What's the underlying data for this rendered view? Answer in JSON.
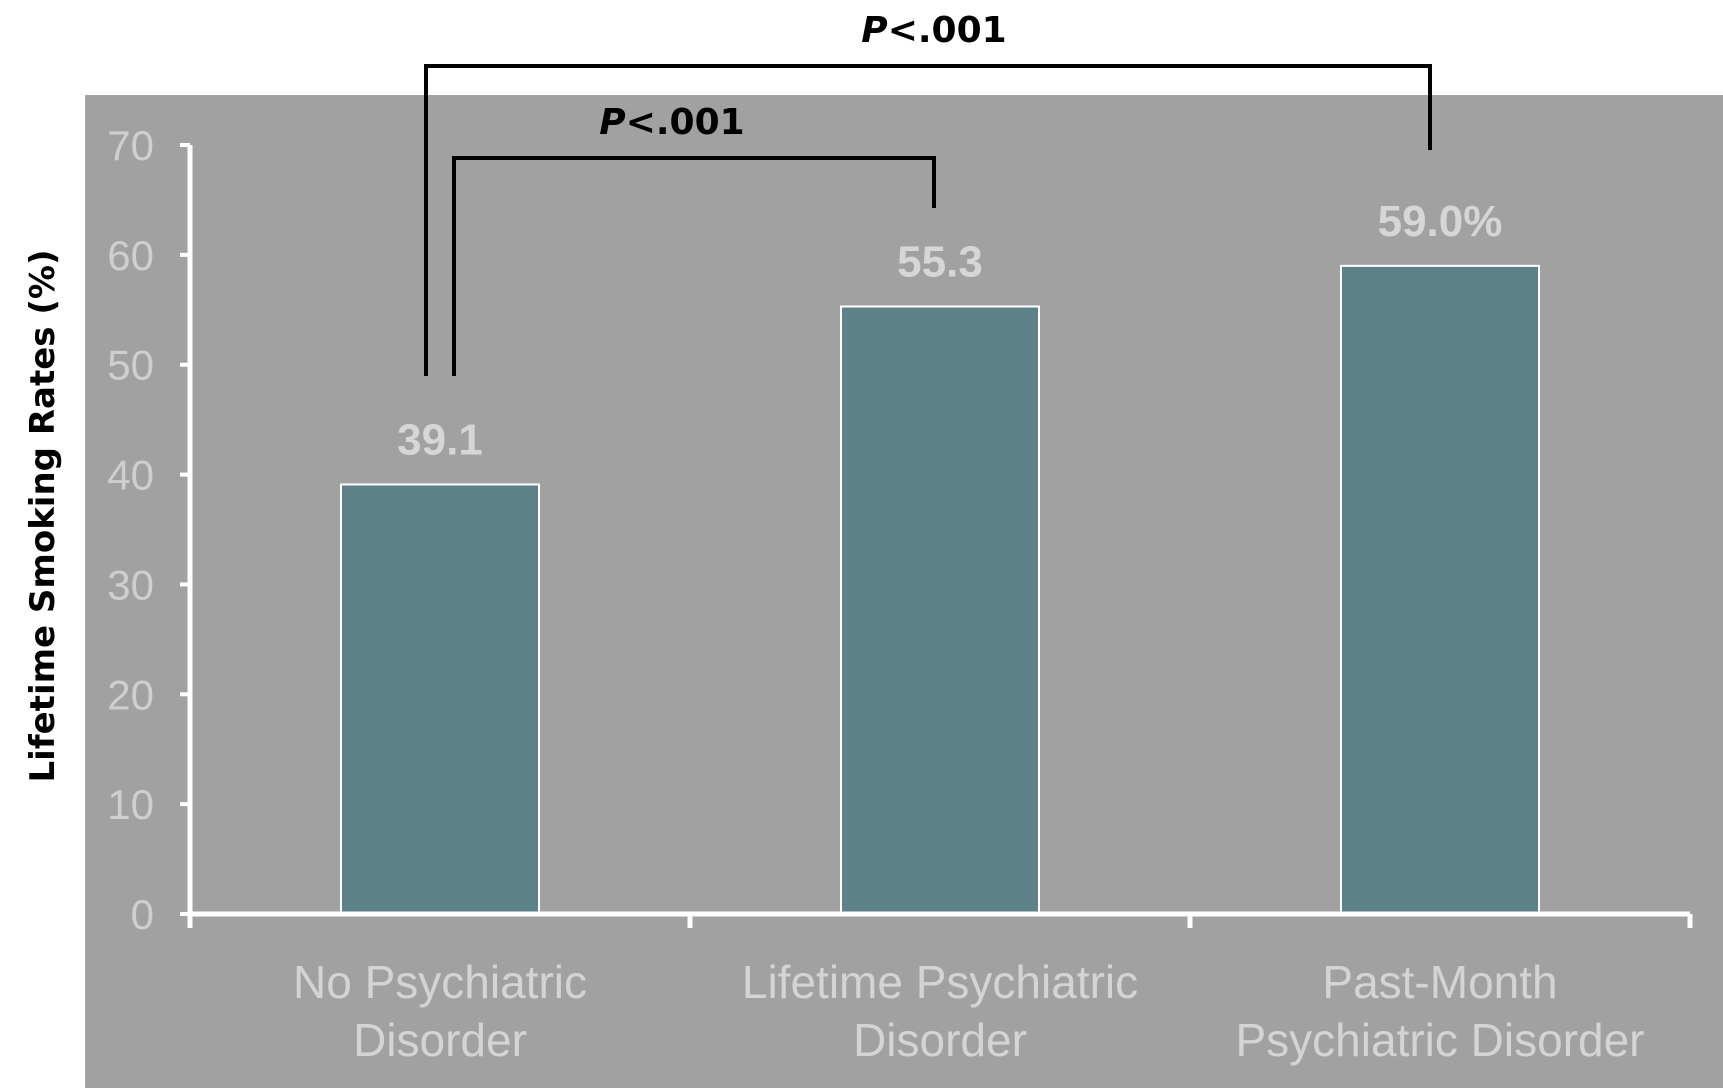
{
  "chart_data": {
    "type": "bar",
    "ylabel": "Lifetime Smoking Rates (%)",
    "xlabel": "",
    "ylim": [
      0,
      70
    ],
    "yticks": [
      "0",
      "10",
      "20",
      "30",
      "40",
      "50",
      "60",
      "70"
    ],
    "categories": [
      [
        "No Psychiatric",
        "Disorder"
      ],
      [
        "Lifetime Psychiatric",
        "Disorder"
      ],
      [
        "Past-Month",
        "Psychiatric Disorder"
      ]
    ],
    "values": [
      39.1,
      55.3,
      59.0
    ],
    "data_labels": [
      "39.1",
      "55.3",
      "59.0%"
    ],
    "grid": false,
    "legend": "none",
    "colors": {
      "plot_background": "#a1a1a1",
      "bar_fill": "#5f828a",
      "bar_edge": "#ffffff",
      "axis": "#ffffff",
      "tick_text": "#cfcfcf",
      "significance": "#000000"
    },
    "annotations": [
      {
        "text_prefix": "P",
        "text_rest": "<.001",
        "between": [
          0,
          1
        ]
      },
      {
        "text_prefix": "P",
        "text_rest": "<.001",
        "between": [
          0,
          2
        ]
      }
    ]
  }
}
